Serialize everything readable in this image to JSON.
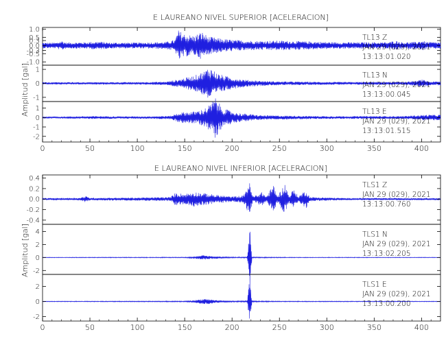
{
  "colors": {
    "trace": "#1f1fe0",
    "axis": "#000000"
  },
  "chart_data": [
    {
      "type": "line",
      "title": "E LAUREANO NIVEL SUPERIOR [ACELERACION]",
      "ylabel": "Amplitud [gal]",
      "x_ticks": [
        "0",
        "50",
        "100",
        "150",
        "200",
        "250",
        "300",
        "350",
        "400"
      ],
      "xlim": [
        0,
        420
      ],
      "panels": [
        {
          "ylim": [
            -1.2,
            1.1
          ],
          "y_ticks": [
            "1.0",
            "0.5",
            "0.3",
            "0.0",
            "-0.3",
            "-0.5",
            "-1.0"
          ],
          "y_tick_values": [
            1.0,
            0.5,
            0.3,
            0.0,
            -0.3,
            -0.5,
            -1.0
          ],
          "station": "TL13   Z",
          "date": "JAN 29 (029), 2021",
          "time": "13:13:01.020",
          "envelope": [
            [
              0,
              0.17
            ],
            [
              15,
              0.18
            ],
            [
              20,
              0.3
            ],
            [
              25,
              0.18
            ],
            [
              45,
              0.2
            ],
            [
              60,
              0.25
            ],
            [
              70,
              0.18
            ],
            [
              100,
              0.18
            ],
            [
              130,
              0.22
            ],
            [
              140,
              0.35
            ],
            [
              143,
              0.95
            ],
            [
              150,
              0.7
            ],
            [
              160,
              0.6
            ],
            [
              168,
              0.85
            ],
            [
              175,
              0.55
            ],
            [
              185,
              0.45
            ],
            [
              200,
              0.35
            ],
            [
              225,
              0.28
            ],
            [
              250,
              0.3
            ],
            [
              280,
              0.25
            ],
            [
              310,
              0.2
            ],
            [
              365,
              0.2
            ],
            [
              372,
              0.3
            ],
            [
              380,
              0.2
            ],
            [
              395,
              0.22
            ],
            [
              400,
              0.32
            ],
            [
              405,
              0.22
            ],
            [
              420,
              0.2
            ]
          ]
        },
        {
          "ylim": [
            -1.3,
            1.3
          ],
          "y_ticks": [
            "1",
            "0",
            "-1"
          ],
          "y_tick_values": [
            1,
            0,
            -1
          ],
          "station": "TL13   N",
          "date": "JAN 29 (029), 2021",
          "time": "13:13:00.045",
          "envelope": [
            [
              0,
              0.08
            ],
            [
              100,
              0.09
            ],
            [
              130,
              0.12
            ],
            [
              145,
              0.3
            ],
            [
              160,
              0.55
            ],
            [
              170,
              0.85
            ],
            [
              176,
              1.2
            ],
            [
              185,
              0.7
            ],
            [
              200,
              0.4
            ],
            [
              215,
              0.25
            ],
            [
              240,
              0.15
            ],
            [
              300,
              0.1
            ],
            [
              380,
              0.1
            ],
            [
              395,
              0.18
            ],
            [
              400,
              0.28
            ],
            [
              410,
              0.12
            ],
            [
              420,
              0.15
            ]
          ]
        },
        {
          "ylim": [
            -2.6,
            1.7
          ],
          "y_ticks": [
            "1",
            "0",
            "-1",
            "-2"
          ],
          "y_tick_values": [
            1,
            0,
            -1,
            -2
          ],
          "station": "TL13   E",
          "date": "JAN 29 (029), 2021",
          "time": "13:13:01.515",
          "envelope": [
            [
              0,
              0.1
            ],
            [
              30,
              0.12
            ],
            [
              55,
              0.15
            ],
            [
              100,
              0.12
            ],
            [
              135,
              0.18
            ],
            [
              145,
              0.55
            ],
            [
              160,
              0.65
            ],
            [
              170,
              0.9
            ],
            [
              178,
              1.5
            ],
            [
              182,
              2.2
            ],
            [
              190,
              1.0
            ],
            [
              205,
              0.5
            ],
            [
              230,
              0.25
            ],
            [
              260,
              0.2
            ],
            [
              300,
              0.15
            ],
            [
              380,
              0.15
            ],
            [
              395,
              0.25
            ],
            [
              405,
              0.3
            ],
            [
              420,
              0.3
            ]
          ]
        }
      ]
    },
    {
      "type": "line",
      "title": "E LAUREANO NIVEL INFERIOR [ACELERACION]",
      "ylabel": "Amplitud [gal]",
      "x_ticks": [
        "0",
        "50",
        "100",
        "150",
        "200",
        "250",
        "300",
        "350",
        "400"
      ],
      "xlim": [
        0,
        420
      ],
      "panels": [
        {
          "ylim": [
            -0.48,
            0.46
          ],
          "y_ticks": [
            "0.4",
            "0.2",
            "0.0",
            "-0.2",
            "-0.4"
          ],
          "y_tick_values": [
            0.4,
            0.2,
            0.0,
            -0.2,
            -0.4
          ],
          "station": "TLS1   Z",
          "date": "JAN 29 (029), 2021",
          "time": "13:13:00.760",
          "envelope": [
            [
              0,
              0.02
            ],
            [
              40,
              0.025
            ],
            [
              45,
              0.06
            ],
            [
              50,
              0.025
            ],
            [
              100,
              0.03
            ],
            [
              135,
              0.04
            ],
            [
              140,
              0.12
            ],
            [
              150,
              0.1
            ],
            [
              160,
              0.14
            ],
            [
              168,
              0.12
            ],
            [
              180,
              0.09
            ],
            [
              200,
              0.05
            ],
            [
              212,
              0.07
            ],
            [
              218,
              0.35
            ],
            [
              222,
              0.05
            ],
            [
              232,
              0.14
            ],
            [
              236,
              0.05
            ],
            [
              244,
              0.28
            ],
            [
              248,
              0.06
            ],
            [
              256,
              0.3
            ],
            [
              260,
              0.06
            ],
            [
              265,
              0.2
            ],
            [
              270,
              0.05
            ],
            [
              278,
              0.18
            ],
            [
              282,
              0.04
            ],
            [
              320,
              0.02
            ],
            [
              420,
              0.02
            ]
          ]
        },
        {
          "ylim": [
            -2.6,
            5.1
          ],
          "y_ticks": [
            "4",
            "2",
            "0",
            "-2"
          ],
          "y_tick_values": [
            4,
            2,
            0,
            -2
          ],
          "station": "TLS1   N",
          "date": "JAN 29 (029), 2021",
          "time": "13:13:02.205",
          "envelope": [
            [
              0,
              0.04
            ],
            [
              150,
              0.06
            ],
            [
              160,
              0.15
            ],
            [
              170,
              0.35
            ],
            [
              180,
              0.2
            ],
            [
              200,
              0.08
            ],
            [
              216,
              0.08
            ],
            [
              219,
              5.0
            ],
            [
              221,
              0.08
            ],
            [
              260,
              0.05
            ],
            [
              420,
              0.04
            ]
          ]
        },
        {
          "ylim": [
            -2.6,
            3.6
          ],
          "y_ticks": [
            "2",
            "0",
            "-2"
          ],
          "y_tick_values": [
            2,
            0,
            -2
          ],
          "station": "TLS1   E",
          "date": "JAN 29 (029), 2021",
          "time": "13:13:00.200",
          "envelope": [
            [
              0,
              0.04
            ],
            [
              150,
              0.06
            ],
            [
              160,
              0.18
            ],
            [
              172,
              0.4
            ],
            [
              182,
              0.2
            ],
            [
              200,
              0.08
            ],
            [
              216,
              0.08
            ],
            [
              219,
              3.5
            ],
            [
              221,
              0.08
            ],
            [
              260,
              0.05
            ],
            [
              420,
              0.04
            ]
          ]
        }
      ]
    }
  ]
}
